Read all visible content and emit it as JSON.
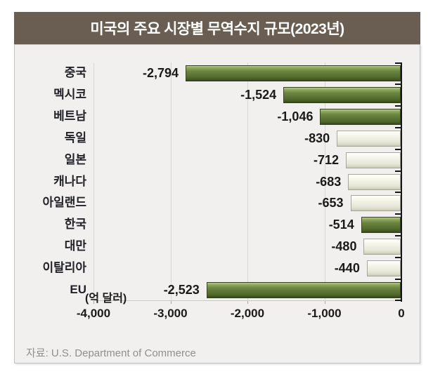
{
  "title": "미국의 주요 시장별 무역수지 규모(2023년)",
  "unit_label": "(억 달러)",
  "source": "자료: U.S. Department of Commerce",
  "colors": {
    "title_bg": "#6a5e52",
    "title_text": "#ffffff",
    "panel_bg": "#f2f0ee",
    "highlight_bar_green": "#5d7635",
    "plain_bar_ivory": "#f0f0e3",
    "axis_line": "#161616",
    "gridline": "#d9d7d4",
    "source_text": "#8f8f8f"
  },
  "chart_data": {
    "type": "bar",
    "orientation": "horizontal",
    "title": "미국의 주요 시장별 무역수지 규모(2023년)",
    "xlabel": "(억 달러)",
    "categories": [
      "중국",
      "멕시코",
      "베트남",
      "독일",
      "일본",
      "캐나다",
      "아일랜드",
      "한국",
      "대만",
      "이탈리아",
      "EU"
    ],
    "values": [
      -2794,
      -1524,
      -1046,
      -830,
      -712,
      -683,
      -653,
      -514,
      -480,
      -440,
      -2523
    ],
    "value_labels": [
      "-2,794",
      "-1,524",
      "-1,046",
      "-830",
      "-712",
      "-683",
      "-653",
      "-514",
      "-480",
      "-440",
      "-2,523"
    ],
    "highlighted": [
      true,
      true,
      true,
      false,
      false,
      false,
      false,
      true,
      false,
      false,
      true
    ],
    "xlim": [
      -4000,
      0
    ],
    "x_ticks": [
      "-4,000",
      "-3,000",
      "-2,000",
      "-1,000",
      "0"
    ],
    "x_tick_values": [
      -4000,
      -3000,
      -2000,
      -1000,
      0
    ],
    "grid": true,
    "legend": "none"
  }
}
